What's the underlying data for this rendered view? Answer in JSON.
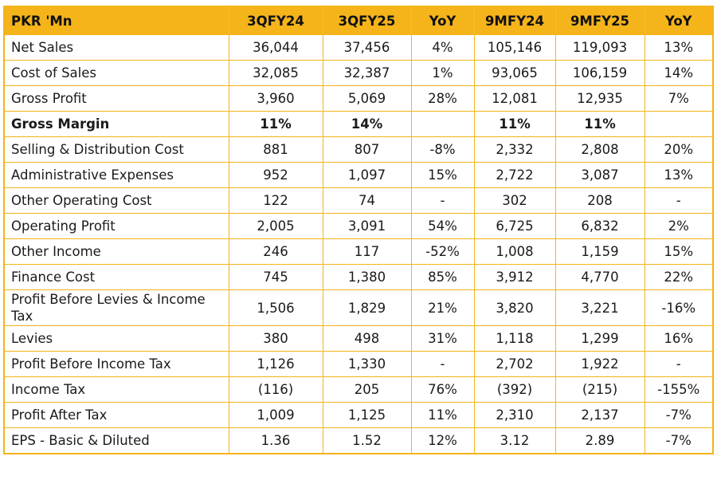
{
  "table": {
    "accent_color": "#F4B41A",
    "headers": [
      "PKR 'Mn",
      "3QFY24",
      "3QFY25",
      "YoY",
      "9MFY24",
      "9MFY25",
      "YoY"
    ],
    "rows": [
      {
        "label": "Net Sales",
        "values": [
          "36,044",
          "37,456",
          "4%",
          "105,146",
          "119,093",
          "13%"
        ]
      },
      {
        "label": "Cost of Sales",
        "values": [
          "32,085",
          "32,387",
          "1%",
          "93,065",
          "106,159",
          "14%"
        ]
      },
      {
        "label": "Gross Profit",
        "values": [
          "3,960",
          "5,069",
          "28%",
          "12,081",
          "12,935",
          "7%"
        ]
      },
      {
        "label": "Gross Margin",
        "values": [
          "11%",
          "14%",
          "",
          "11%",
          "11%",
          ""
        ]
      },
      {
        "label": "Selling & Distribution Cost",
        "values": [
          "881",
          "807",
          "-8%",
          "2,332",
          "2,808",
          "20%"
        ]
      },
      {
        "label": "Administrative Expenses",
        "values": [
          "952",
          "1,097",
          "15%",
          "2,722",
          "3,087",
          "13%"
        ]
      },
      {
        "label": "Other Operating Cost",
        "values": [
          "122",
          "74",
          "-",
          "302",
          "208",
          "-"
        ]
      },
      {
        "label": "Operating Profit",
        "values": [
          "2,005",
          "3,091",
          "54%",
          "6,725",
          "6,832",
          "2%"
        ]
      },
      {
        "label": "Other Income",
        "values": [
          "246",
          "117",
          "-52%",
          "1,008",
          "1,159",
          "15%"
        ]
      },
      {
        "label": "Finance Cost",
        "values": [
          "745",
          "1,380",
          "85%",
          "3,912",
          "4,770",
          "22%"
        ]
      },
      {
        "label": "Profit Before Levies & Income Tax",
        "values": [
          "1,506",
          "1,829",
          "21%",
          "3,820",
          "3,221",
          "-16%"
        ]
      },
      {
        "label": "Levies",
        "values": [
          "380",
          "498",
          "31%",
          "1,118",
          "1,299",
          "16%"
        ]
      },
      {
        "label": "Profit Before Income Tax",
        "values": [
          "1,126",
          "1,330",
          "-",
          "2,702",
          "1,922",
          "-"
        ]
      },
      {
        "label": "Income Tax",
        "values": [
          "(116)",
          "205",
          "76%",
          "(392)",
          "(215)",
          "-155%"
        ]
      },
      {
        "label": "Profit After Tax",
        "values": [
          "1,009",
          "1,125",
          "11%",
          "2,310",
          "2,137",
          "-7%"
        ]
      },
      {
        "label": "EPS - Basic & Diluted",
        "values": [
          "1.36",
          "1.52",
          "12%",
          "3.12",
          "2.89",
          "-7%"
        ]
      }
    ]
  }
}
